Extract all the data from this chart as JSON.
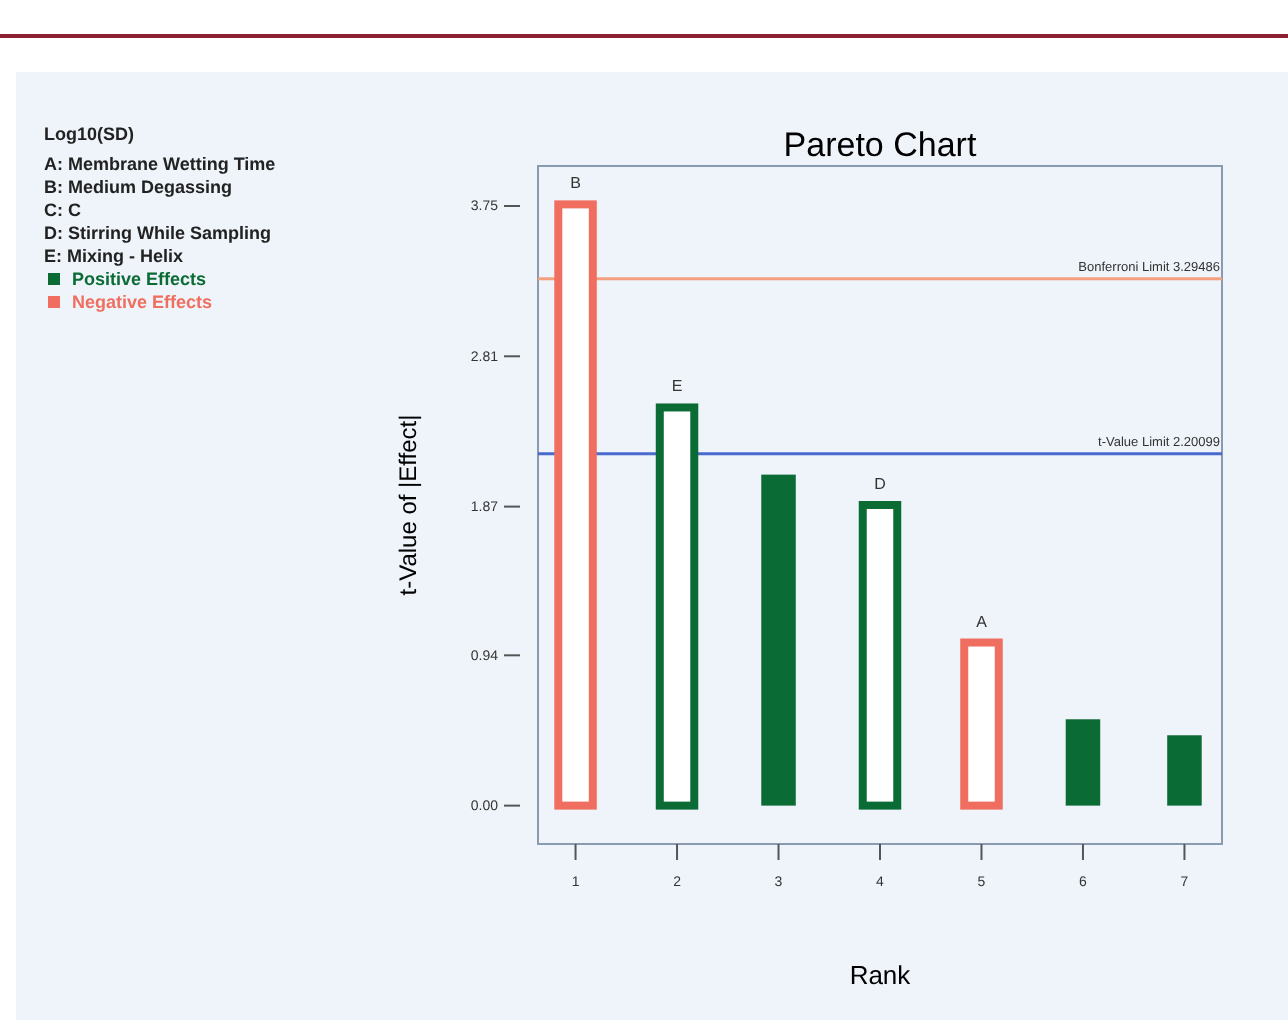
{
  "chart_data": {
    "type": "bar",
    "title": "Pareto Chart",
    "xlabel": "Rank",
    "ylabel": "t-Value of |Effect|",
    "categories": [
      "1",
      "2",
      "3",
      "4",
      "5",
      "6",
      "7"
    ],
    "series": [
      {
        "name": "Positive Effects",
        "color": "#0b6b35",
        "values": [
          null,
          2.49,
          2.07,
          1.88,
          null,
          0.54,
          0.44
        ],
        "value_labels": [
          null,
          "E",
          null,
          "D",
          null,
          null,
          null
        ]
      },
      {
        "name": "Negative Effects",
        "color": "#f06e60",
        "values": [
          3.76,
          null,
          null,
          null,
          1.02,
          null,
          null
        ],
        "value_labels": [
          "B",
          null,
          null,
          null,
          "A",
          null,
          null
        ]
      }
    ],
    "ylim": [
      -0.24,
      4.0
    ],
    "yticks": [
      {
        "value": 0,
        "label": "0.00"
      },
      0.94,
      1.87,
      2.81,
      3.75
    ],
    "ref_lines": [
      {
        "axis": "y",
        "value": 3.29486,
        "label": "Bonferroni Limit 3.29486",
        "color": "#f4a080"
      },
      {
        "axis": "y",
        "value": 2.20099,
        "label": "t-Value Limit 2.20099",
        "color": "#4a6ad0"
      }
    ],
    "annotations": [
      "Log10(SD)",
      "A: Membrane Wetting Time",
      "B: Medium Degassing",
      "C: C",
      "D: Stirring While Sampling",
      "E: Mixing - Helix"
    ],
    "legend": "left",
    "grid": false
  }
}
